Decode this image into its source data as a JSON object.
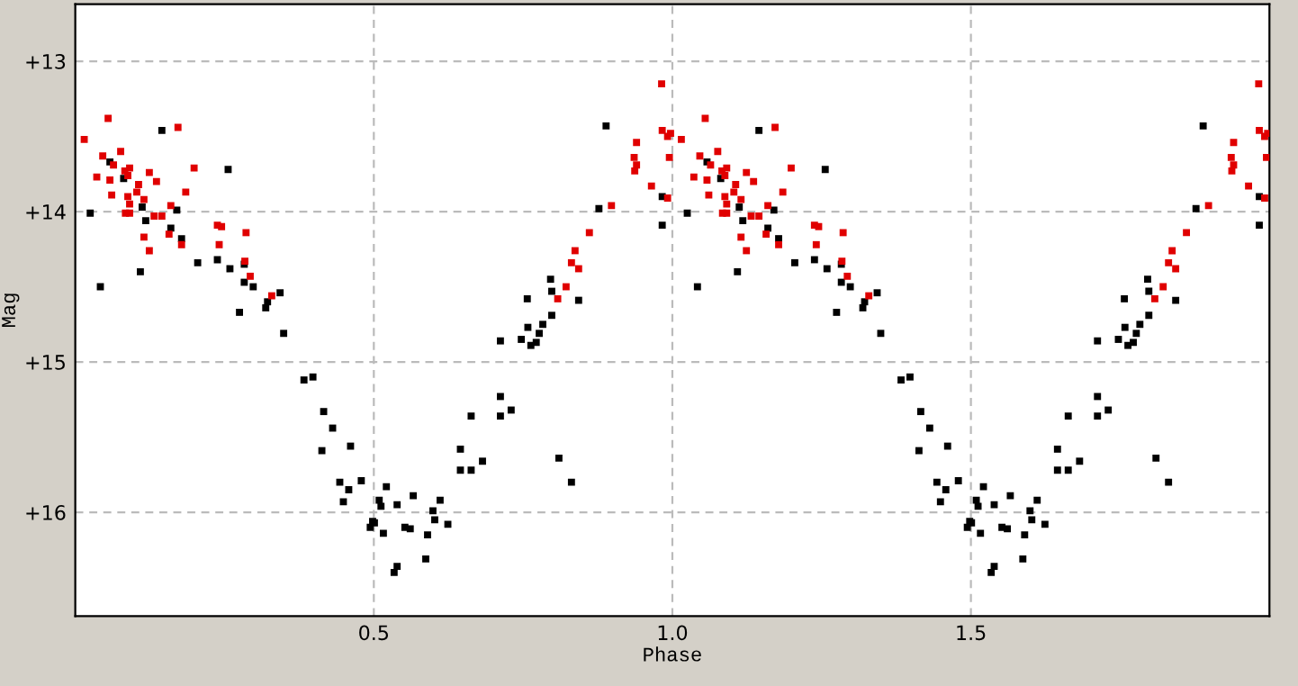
{
  "chart_data": {
    "type": "scatter",
    "xlabel": "Phase",
    "ylabel": "Mag",
    "xlim": [
      0.0,
      2.0
    ],
    "xticks": [
      0.5,
      {
        "value": 1.0,
        "label": "1.0"
      },
      1.5
    ],
    "ylim": [
      16.69,
      12.62
    ],
    "yticks": [
      {
        "value": 13,
        "label": "+13"
      },
      {
        "value": 14,
        "label": "+14"
      },
      {
        "value": 15,
        "label": "+15"
      },
      {
        "value": 16,
        "label": "+16"
      }
    ],
    "grid": true,
    "marker": "square",
    "legend": false,
    "series": [
      {
        "color": "#000000",
        "x": [
          0.145,
          0.256,
          0.058,
          0.081,
          0.112,
          0.17,
          0.025,
          0.118,
          0.16,
          0.178,
          0.205,
          0.238,
          0.259,
          0.283,
          0.283,
          0.298,
          0.109,
          0.042,
          0.343,
          0.322,
          0.319,
          0.275,
          0.349,
          0.383,
          0.398,
          0.416,
          0.431,
          0.413,
          0.461,
          0.443,
          0.479,
          0.458,
          0.449,
          0.494,
          0.498,
          0.521,
          0.509,
          0.512,
          0.539,
          0.566,
          0.611,
          0.599,
          0.602,
          0.624,
          0.501,
          0.516,
          0.552,
          0.561,
          0.59,
          0.587,
          0.539,
          0.534,
          0.645,
          0.645,
          0.663,
          0.682,
          0.663,
          0.712,
          0.712,
          0.73,
          0.81,
          0.831,
          0.712,
          0.747,
          0.758,
          0.777,
          0.783,
          0.763,
          0.772,
          0.798,
          0.757,
          0.843,
          0.798,
          0.889,
          0.983,
          0.877,
          0.983,
          0.796,
          1.145,
          1.256,
          1.058,
          1.081,
          1.112,
          1.17,
          1.025,
          1.118,
          1.16,
          1.178,
          1.205,
          1.238,
          1.259,
          1.283,
          1.283,
          1.298,
          1.109,
          1.042,
          1.343,
          1.322,
          1.319,
          1.275,
          1.349,
          1.383,
          1.398,
          1.416,
          1.431,
          1.413,
          1.461,
          1.443,
          1.479,
          1.458,
          1.449,
          1.494,
          1.498,
          1.521,
          1.509,
          1.512,
          1.539,
          1.566,
          1.611,
          1.599,
          1.602,
          1.624,
          1.501,
          1.516,
          1.552,
          1.561,
          1.59,
          1.587,
          1.539,
          1.534,
          1.645,
          1.645,
          1.663,
          1.682,
          1.663,
          1.712,
          1.712,
          1.73,
          1.81,
          1.831,
          1.712,
          1.747,
          1.758,
          1.777,
          1.783,
          1.763,
          1.772,
          1.798,
          1.757,
          1.843,
          1.798,
          1.889,
          1.983,
          1.877,
          1.983,
          1.796
        ],
        "values": [
          13.46,
          13.72,
          13.67,
          13.78,
          13.97,
          13.99,
          14.01,
          14.06,
          14.11,
          14.18,
          14.34,
          14.32,
          14.38,
          14.35,
          14.47,
          14.5,
          14.4,
          14.5,
          14.54,
          14.6,
          14.64,
          14.67,
          14.81,
          15.12,
          15.1,
          15.33,
          15.44,
          15.59,
          15.56,
          15.8,
          15.79,
          15.85,
          15.93,
          16.1,
          16.06,
          15.83,
          15.92,
          15.96,
          15.95,
          15.89,
          15.92,
          15.99,
          16.05,
          16.08,
          16.07,
          16.14,
          16.1,
          16.11,
          16.15,
          16.31,
          16.36,
          16.4,
          15.58,
          15.72,
          15.72,
          15.66,
          15.36,
          15.36,
          15.23,
          15.32,
          15.64,
          15.8,
          14.86,
          14.85,
          14.77,
          14.81,
          14.75,
          14.89,
          14.87,
          14.69,
          14.58,
          14.59,
          14.53,
          13.43,
          13.9,
          13.98,
          14.09,
          14.45,
          13.46,
          13.72,
          13.67,
          13.78,
          13.97,
          13.99,
          14.01,
          14.06,
          14.11,
          14.18,
          14.34,
          14.32,
          14.38,
          14.35,
          14.47,
          14.5,
          14.4,
          14.5,
          14.54,
          14.6,
          14.64,
          14.67,
          14.81,
          15.12,
          15.1,
          15.33,
          15.44,
          15.59,
          15.56,
          15.8,
          15.79,
          15.85,
          15.93,
          16.1,
          16.06,
          15.83,
          15.92,
          15.96,
          15.95,
          15.89,
          15.92,
          15.99,
          16.05,
          16.08,
          16.07,
          16.14,
          16.1,
          16.11,
          16.15,
          16.31,
          16.36,
          16.4,
          15.58,
          15.72,
          15.72,
          15.66,
          15.36,
          15.36,
          15.23,
          15.32,
          15.64,
          15.8,
          14.86,
          14.85,
          14.77,
          14.81,
          14.75,
          14.89,
          14.87,
          14.69,
          14.58,
          14.59,
          14.53,
          13.43,
          13.9,
          13.98,
          14.09,
          14.45
        ]
      },
      {
        "color": "#e00000",
        "x": [
          0.055,
          0.015,
          0.172,
          0.076,
          0.046,
          0.064,
          0.036,
          0.058,
          0.083,
          0.091,
          0.088,
          0.124,
          0.136,
          0.106,
          0.199,
          0.061,
          0.088,
          0.103,
          0.115,
          0.091,
          0.185,
          0.16,
          0.084,
          0.091,
          0.132,
          0.145,
          0.238,
          0.245,
          0.286,
          0.115,
          0.157,
          0.178,
          0.124,
          0.241,
          0.284,
          0.293,
          0.329,
          0.808,
          0.982,
          0.983,
          0.992,
          0.997,
          0.94,
          0.995,
          0.936,
          0.94,
          0.937,
          0.965,
          0.992,
          0.898,
          0.861,
          0.837,
          0.831,
          0.843,
          0.822,
          1.055,
          1.015,
          1.172,
          1.076,
          1.046,
          1.064,
          1.036,
          1.058,
          1.083,
          1.091,
          1.088,
          1.124,
          1.136,
          1.106,
          1.199,
          1.061,
          1.088,
          1.103,
          1.115,
          1.091,
          1.185,
          1.16,
          1.084,
          1.091,
          1.132,
          1.145,
          1.238,
          1.245,
          1.286,
          1.115,
          1.157,
          1.178,
          1.124,
          1.241,
          1.284,
          1.293,
          1.329,
          1.808,
          1.982,
          1.983,
          1.992,
          1.997,
          1.94,
          1.995,
          1.936,
          1.94,
          1.937,
          1.965,
          1.992,
          1.898,
          1.861,
          1.837,
          1.831,
          1.843,
          1.822
        ],
        "values": [
          13.38,
          13.52,
          13.44,
          13.6,
          13.63,
          13.69,
          13.77,
          13.79,
          13.73,
          13.71,
          13.76,
          13.74,
          13.8,
          13.82,
          13.71,
          13.89,
          13.9,
          13.87,
          13.92,
          13.95,
          13.87,
          13.96,
          14.01,
          14.01,
          14.03,
          14.03,
          14.09,
          14.1,
          14.14,
          14.17,
          14.15,
          14.22,
          14.26,
          14.22,
          14.33,
          14.43,
          14.56,
          14.58,
          13.15,
          13.46,
          13.5,
          13.48,
          13.54,
          13.64,
          13.64,
          13.69,
          13.73,
          13.83,
          13.91,
          13.96,
          14.14,
          14.26,
          14.34,
          14.38,
          14.5,
          13.38,
          13.52,
          13.44,
          13.6,
          13.63,
          13.69,
          13.77,
          13.79,
          13.73,
          13.71,
          13.76,
          13.74,
          13.8,
          13.82,
          13.71,
          13.89,
          13.9,
          13.87,
          13.92,
          13.95,
          13.87,
          13.96,
          14.01,
          14.01,
          14.03,
          14.03,
          14.09,
          14.1,
          14.14,
          14.17,
          14.15,
          14.22,
          14.26,
          14.22,
          14.33,
          14.43,
          14.56,
          14.58,
          13.15,
          13.46,
          13.5,
          13.48,
          13.54,
          13.64,
          13.64,
          13.69,
          13.73,
          13.83,
          13.91,
          13.96,
          14.14,
          14.26,
          14.34,
          14.38,
          14.5
        ]
      }
    ]
  }
}
